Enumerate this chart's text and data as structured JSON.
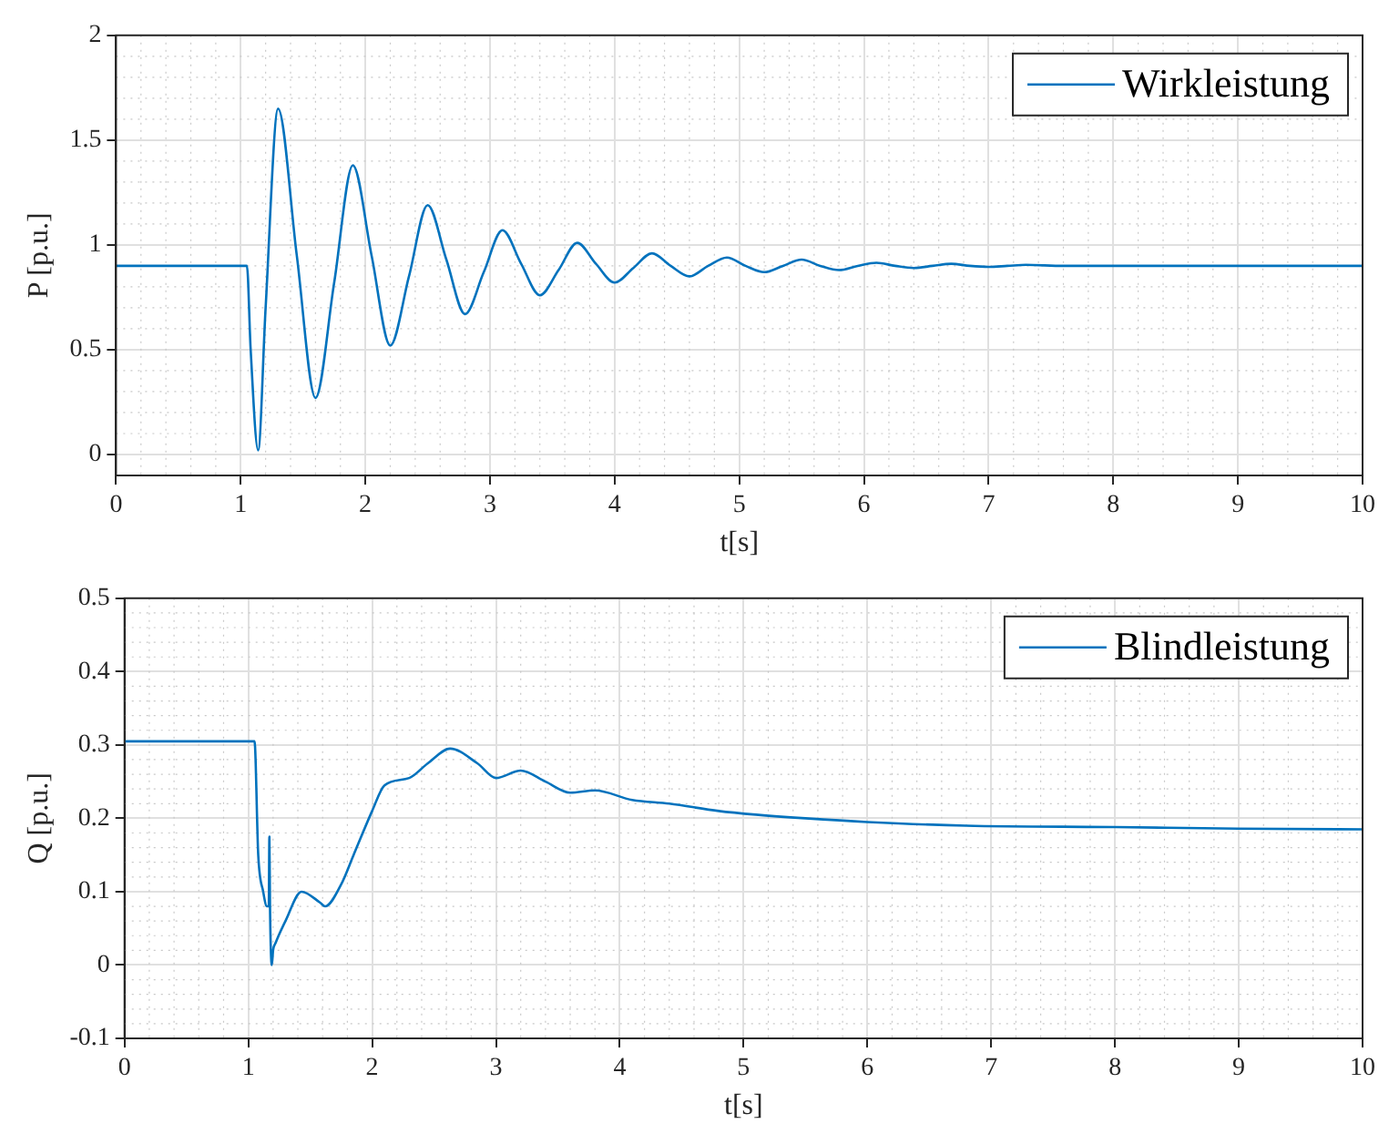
{
  "chart_data": [
    {
      "type": "line",
      "xlabel": "t[s]",
      "ylabel": "P [p.u.]",
      "xlim": [
        0,
        10
      ],
      "xticks": [
        0,
        1,
        2,
        3,
        4,
        5,
        6,
        7,
        8,
        9,
        10
      ],
      "ylim": [
        -0.1,
        2
      ],
      "yticks": [
        0,
        0.5,
        1,
        1.5,
        2
      ],
      "grid": true,
      "legend": "top right",
      "series": [
        {
          "name": "Wirkleistung",
          "color": "#0072bd",
          "x": [
            0,
            1.05,
            1.08,
            1.14,
            1.2,
            1.3,
            1.45,
            1.6,
            1.75,
            1.9,
            2.05,
            2.2,
            2.35,
            2.5,
            2.65,
            2.8,
            2.95,
            3.1,
            3.25,
            3.4,
            3.55,
            3.7,
            3.85,
            4.0,
            4.15,
            4.3,
            4.45,
            4.6,
            4.75,
            4.9,
            5.05,
            5.2,
            5.35,
            5.5,
            5.65,
            5.8,
            5.95,
            6.1,
            6.25,
            6.4,
            6.55,
            6.7,
            6.85,
            7.0,
            7.15,
            7.3,
            7.6,
            8,
            9,
            10
          ],
          "values": [
            0.9,
            0.9,
            0.5,
            0.02,
            0.7,
            1.65,
            0.95,
            0.27,
            0.82,
            1.38,
            0.95,
            0.52,
            0.85,
            1.19,
            0.93,
            0.67,
            0.87,
            1.07,
            0.91,
            0.76,
            0.88,
            1.01,
            0.91,
            0.82,
            0.89,
            0.96,
            0.9,
            0.85,
            0.9,
            0.94,
            0.9,
            0.87,
            0.9,
            0.93,
            0.9,
            0.88,
            0.9,
            0.915,
            0.9,
            0.89,
            0.9,
            0.91,
            0.9,
            0.895,
            0.9,
            0.905,
            0.9,
            0.9,
            0.9,
            0.9
          ]
        }
      ]
    },
    {
      "type": "line",
      "xlabel": "t[s]",
      "ylabel": "Q [p.u.]",
      "xlim": [
        0,
        10
      ],
      "xticks": [
        0,
        1,
        2,
        3,
        4,
        5,
        6,
        7,
        8,
        9,
        10
      ],
      "ylim": [
        -0.1,
        0.5
      ],
      "yticks": [
        -0.1,
        0,
        0.1,
        0.2,
        0.3,
        0.4,
        0.5
      ],
      "grid": true,
      "legend": "top right",
      "series": [
        {
          "name": "Blindleistung",
          "color": "#0072bd",
          "x": [
            0,
            1.05,
            1.08,
            1.12,
            1.15,
            1.165,
            1.17,
            1.175,
            1.19,
            1.2,
            1.22,
            1.3,
            1.43,
            1.58,
            1.62,
            1.75,
            1.85,
            2.0,
            2.1,
            2.3,
            2.45,
            2.63,
            2.85,
            3.0,
            3.2,
            3.4,
            3.6,
            3.8,
            4.1,
            4.4,
            4.8,
            5.1,
            5.5,
            6,
            6.8,
            8,
            9,
            10
          ],
          "values": [
            0.305,
            0.305,
            0.15,
            0.1,
            0.08,
            0.08,
            0.175,
            0.08,
            0.0,
            0.02,
            0.03,
            0.06,
            0.1,
            0.085,
            0.08,
            0.11,
            0.15,
            0.21,
            0.245,
            0.255,
            0.275,
            0.295,
            0.275,
            0.255,
            0.265,
            0.25,
            0.235,
            0.238,
            0.225,
            0.22,
            0.21,
            0.205,
            0.2,
            0.195,
            0.19,
            0.188,
            0.186,
            0.185
          ]
        }
      ]
    }
  ]
}
